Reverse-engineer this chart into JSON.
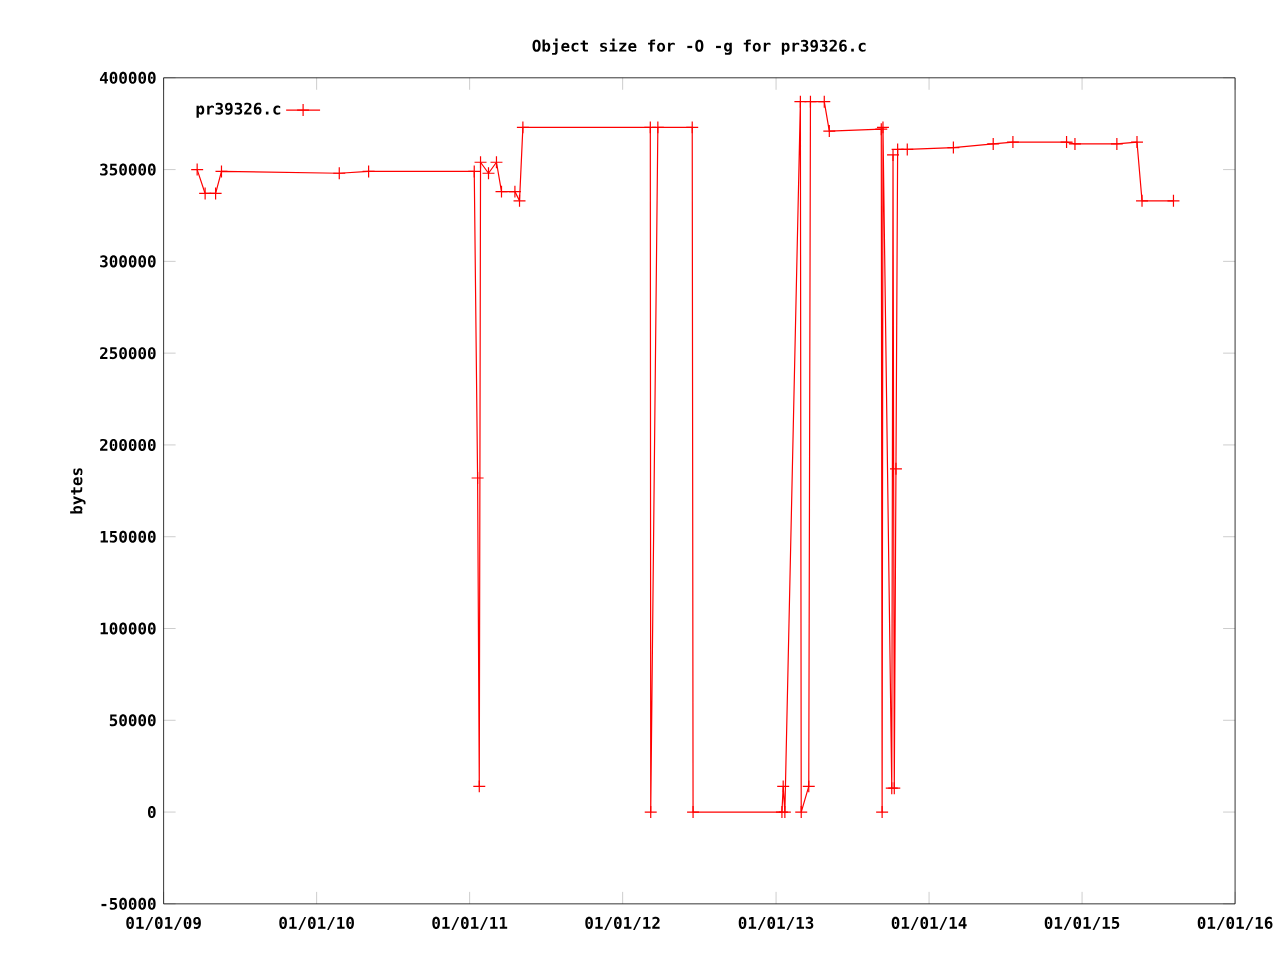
{
  "chart_data": {
    "type": "line",
    "title": "Object size for -O -g for pr39326.c",
    "ylabel": "bytes",
    "x": [
      "2009-03-22",
      "2009-04-10",
      "2009-05-05",
      "2009-05-19",
      "2010-02-24",
      "2010-05-05",
      "2011-01-12",
      "2011-01-20",
      "2011-01-24",
      "2011-01-27",
      "2011-02-15",
      "2011-03-06",
      "2011-03-18",
      "2011-04-19",
      "2011-04-30",
      "2011-05-08",
      "2012-03-07",
      "2012-03-08",
      "2012-03-25",
      "2012-06-15",
      "2012-06-17",
      "2013-01-15",
      "2013-01-18",
      "2013-01-22",
      "2013-02-28",
      "2013-03-02",
      "2013-03-20",
      "2013-03-24",
      "2013-04-26",
      "2013-05-08",
      "2013-09-09",
      "2013-09-11",
      "2013-09-13",
      "2013-10-04",
      "2013-10-07",
      "2013-10-10",
      "2013-10-14",
      "2013-10-18",
      "2013-11-10",
      "2014-02-28",
      "2014-06-03",
      "2014-07-20",
      "2014-11-25",
      "2014-12-15",
      "2015-03-25",
      "2015-05-12",
      "2015-05-24",
      "2015-08-07"
    ],
    "series": [
      {
        "name": "pr39326.c",
        "color": "#ff0000",
        "values": [
          350000,
          337000,
          337000,
          349000,
          348000,
          349000,
          349000,
          182000,
          14000,
          354000,
          348000,
          354000,
          338000,
          338000,
          333000,
          373000,
          373000,
          0,
          373000,
          373000,
          0,
          0,
          14000,
          0,
          387000,
          0,
          14000,
          387000,
          387000,
          371000,
          372000,
          0,
          373000,
          13000,
          358000,
          13000,
          187000,
          361000,
          361000,
          362000,
          364000,
          365000,
          365000,
          364000,
          364000,
          365000,
          333000,
          333000
        ]
      }
    ],
    "xlim": [
      "2009-01-01",
      "2016-01-01"
    ],
    "xticks": [
      {
        "value": "2009-01-01",
        "label": "01/01/09"
      },
      {
        "value": "2010-01-01",
        "label": "01/01/10"
      },
      {
        "value": "2011-01-01",
        "label": "01/01/11"
      },
      {
        "value": "2012-01-01",
        "label": "01/01/12"
      },
      {
        "value": "2013-01-01",
        "label": "01/01/13"
      },
      {
        "value": "2014-01-01",
        "label": "01/01/14"
      },
      {
        "value": "2015-01-01",
        "label": "01/01/15"
      },
      {
        "value": "2016-01-01",
        "label": "01/01/16"
      }
    ],
    "ylim": [
      -50000,
      400000
    ],
    "yticks": [
      -50000,
      0,
      50000,
      100000,
      150000,
      200000,
      250000,
      300000,
      350000,
      400000
    ],
    "legend": "top left",
    "marker": "cross",
    "line_style": "solid",
    "grid": false
  }
}
